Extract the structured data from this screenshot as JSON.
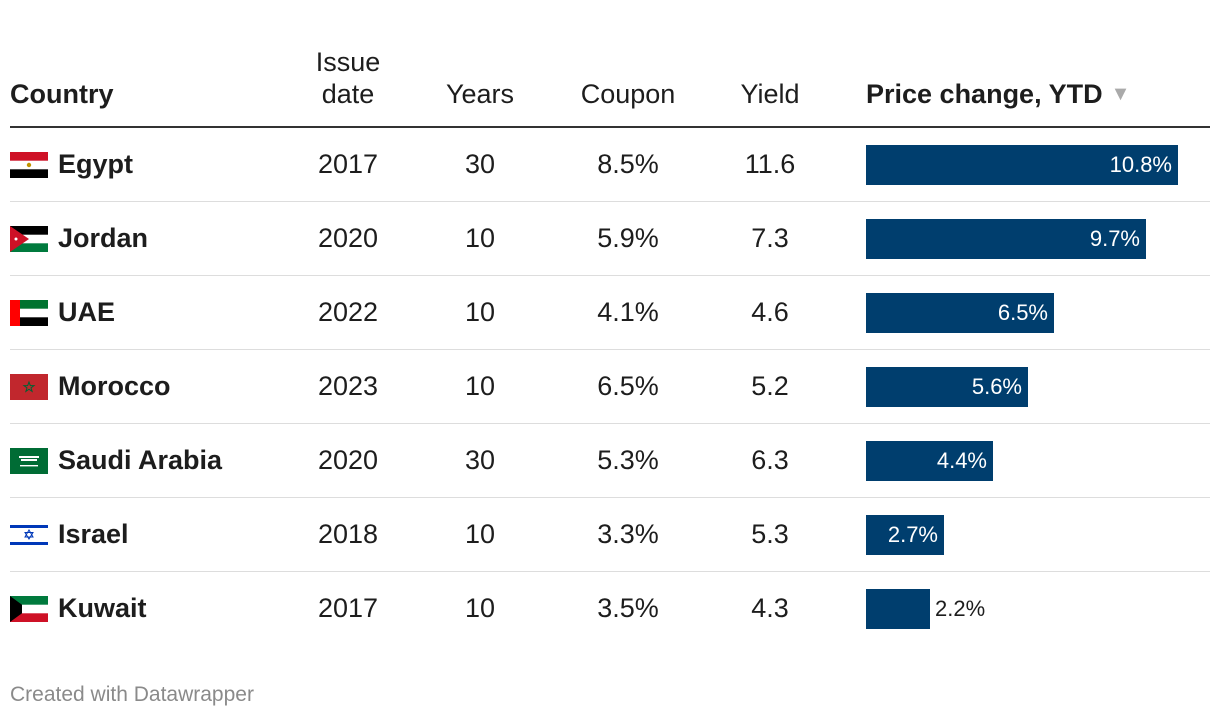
{
  "headers": {
    "country": "Country",
    "issue_line1": "Issue",
    "issue_line2": "date",
    "years": "Years",
    "coupon": "Coupon",
    "yield": "Yield",
    "price": "Price change, YTD"
  },
  "sort_icon": "sort-descending-icon",
  "rows": [
    {
      "country": "Egypt",
      "flag": "egypt-flag-icon",
      "issue": "2017",
      "years": "30",
      "coupon": "8.5%",
      "yield": "11.6",
      "price_value": 10.8,
      "price_label": "10.8%"
    },
    {
      "country": "Jordan",
      "flag": "jordan-flag-icon",
      "issue": "2020",
      "years": "10",
      "coupon": "5.9%",
      "yield": "7.3",
      "price_value": 9.7,
      "price_label": "9.7%"
    },
    {
      "country": "UAE",
      "flag": "uae-flag-icon",
      "issue": "2022",
      "years": "10",
      "coupon": "4.1%",
      "yield": "4.6",
      "price_value": 6.5,
      "price_label": "6.5%"
    },
    {
      "country": "Morocco",
      "flag": "morocco-flag-icon",
      "issue": "2023",
      "years": "10",
      "coupon": "6.5%",
      "yield": "5.2",
      "price_value": 5.6,
      "price_label": "5.6%"
    },
    {
      "country": "Saudi Arabia",
      "flag": "saudi-arabia-flag-icon",
      "issue": "2020",
      "years": "30",
      "coupon": "5.3%",
      "yield": "6.3",
      "price_value": 4.4,
      "price_label": "4.4%"
    },
    {
      "country": "Israel",
      "flag": "israel-flag-icon",
      "issue": "2018",
      "years": "10",
      "coupon": "3.3%",
      "yield": "5.3",
      "price_value": 2.7,
      "price_label": "2.7%"
    },
    {
      "country": "Kuwait",
      "flag": "kuwait-flag-icon",
      "issue": "2017",
      "years": "10",
      "coupon": "3.5%",
      "yield": "4.3",
      "price_value": 2.2,
      "price_label": "2.2%"
    }
  ],
  "chart_data": {
    "type": "table",
    "columns": [
      "Country",
      "Issue date",
      "Years",
      "Coupon",
      "Yield",
      "Price change, YTD"
    ],
    "categories": [
      "Egypt",
      "Jordan",
      "UAE",
      "Morocco",
      "Saudi Arabia",
      "Israel",
      "Kuwait"
    ],
    "series": [
      {
        "name": "Issue date",
        "values": [
          2017,
          2020,
          2022,
          2023,
          2020,
          2018,
          2017
        ]
      },
      {
        "name": "Years",
        "values": [
          30,
          10,
          10,
          10,
          30,
          10,
          10
        ]
      },
      {
        "name": "Coupon",
        "values": [
          8.5,
          5.9,
          4.1,
          6.5,
          5.3,
          3.3,
          3.5
        ]
      },
      {
        "name": "Yield",
        "values": [
          11.6,
          7.3,
          4.6,
          5.2,
          6.3,
          5.3,
          4.3
        ]
      },
      {
        "name": "Price change, YTD",
        "values": [
          10.8,
          9.7,
          6.5,
          5.6,
          4.4,
          2.7,
          2.2
        ]
      }
    ],
    "bar_column": "Price change, YTD",
    "bar_max": 10.8,
    "bar_color": "#003e6e",
    "sorted_by": "Price change, YTD",
    "sort_order": "descending"
  },
  "colors": {
    "bar": "#003e6e",
    "label_inside": "#ffffff",
    "label_outside": "#1d1d1d",
    "footer": "#8a8a8a"
  },
  "footer": "Created with Datawrapper"
}
